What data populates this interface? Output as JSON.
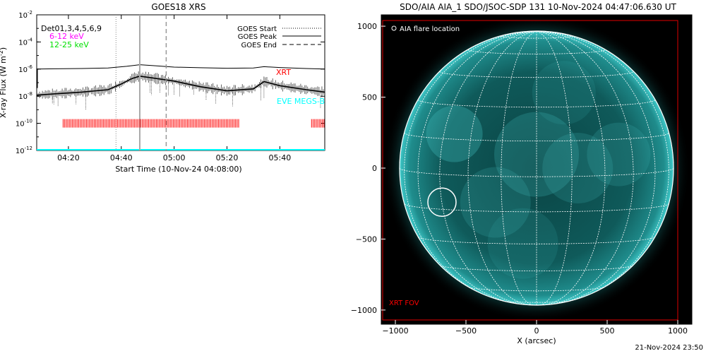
{
  "footer_date": "21-Nov-2024 23:50",
  "colors": {
    "goes_long": "#000000",
    "goes_6_12": "#ff00ff",
    "goes_12_25": "#00ff00",
    "xrt": "#ff0000",
    "eve": "#00ffff",
    "aia_disk": "#0e5050",
    "grid": "#ffffff",
    "fov": "#e00000"
  },
  "chart_data": [
    {
      "type": "line",
      "title": "GOES18 XRS",
      "xlabel": "Start Time (10-Nov-24 04:08:00)",
      "ylabel": "X-ray Flux (W m",
      "ylabel_sup": "-2",
      "ylabel_close": ")",
      "y_scale": "log",
      "ylim": [
        1e-12,
        0.01
      ],
      "xlim": [
        "04:08",
        "05:57"
      ],
      "y_ticks": [
        {
          "base": "10",
          "exp": "-12",
          "value": 1e-12
        },
        {
          "base": "10",
          "exp": "-10",
          "value": 1e-10
        },
        {
          "base": "10",
          "exp": "-8",
          "value": 1e-08
        },
        {
          "base": "10",
          "exp": "-6",
          "value": 1e-06
        },
        {
          "base": "10",
          "exp": "-4",
          "value": 0.0001
        },
        {
          "base": "10",
          "exp": "-2",
          "value": 0.01
        }
      ],
      "x_ticks": [
        "04:20",
        "04:40",
        "05:00",
        "05:20",
        "05:40"
      ],
      "x_tick_minutes": [
        20,
        40,
        60,
        80,
        100
      ],
      "legend_text": {
        "detector": "Det01,3,4,5,6,9",
        "low": "6-12 keV",
        "high": "12-25 keV"
      },
      "markers_legend": [
        "GOES Start",
        "GOES Peak",
        "GOES End"
      ],
      "markers": {
        "start": "04:38",
        "peak": "04:47",
        "end": "04:57"
      },
      "labels": {
        "xrt": "XRT",
        "eve": "EVE MEGS-B"
      },
      "series": [
        {
          "x": [
            "04:08",
            "04:15",
            "04:25",
            "04:35",
            "04:42",
            "04:47",
            "04:52",
            "05:00",
            "05:10",
            "05:20",
            "05:30",
            "05:34",
            "05:40",
            "05:50",
            "05:57"
          ],
          "values": [
            1e-06,
            1.05e-06,
            1.1e-06,
            1.2e-06,
            1.6e-06,
            2.1e-06,
            1.8e-06,
            1.4e-06,
            1.25e-06,
            1.15e-06,
            1.2e-06,
            1.5e-06,
            1.3e-06,
            1.1e-06,
            1e-06
          ]
        },
        {
          "x": [
            "04:08",
            "04:15",
            "04:25",
            "04:35",
            "04:40",
            "04:44",
            "04:47",
            "04:52",
            "05:00",
            "05:10",
            "05:20",
            "05:30",
            "05:34",
            "05:40",
            "05:50",
            "05:57"
          ],
          "values": [
            1.2e-08,
            1.5e-08,
            2e-08,
            3e-08,
            8e-08,
            2e-07,
            3e-07,
            2.2e-07,
            1.3e-07,
            5e-08,
            2.5e-08,
            3.5e-08,
            1.2e-07,
            6e-08,
            3e-08,
            2e-08
          ]
        }
      ],
      "xrt_intervals": [
        [
          "04:18",
          "05:25"
        ],
        [
          "05:52",
          "05:57"
        ]
      ],
      "eve_level": 1e-12
    },
    {
      "type": "scatter",
      "title": "SDO/AIA AIA_1 SDO/JSOC-SDP 131 10-Nov-2024 04:47:06.630 UT",
      "xlabel": "X (arcsec)",
      "ylabel": "",
      "xlim": [
        -1100,
        1100
      ],
      "ylim": [
        -1100,
        1080
      ],
      "x_ticks": [
        "-1000",
        "-500",
        "0",
        "500",
        "1000"
      ],
      "x_tick_values": [
        -1000,
        -500,
        0,
        500,
        1000
      ],
      "y_ticks": [
        "1000",
        "500",
        "0",
        "-500",
        "-1000"
      ],
      "y_tick_values": [
        1000,
        500,
        0,
        -500,
        -1000
      ],
      "solar_radius": 970,
      "legend": "AIA flare location",
      "flare_location": {
        "x": -670,
        "y": -240,
        "radius": 100
      },
      "fov_label": "XRT FOV",
      "fov": {
        "x0": -1100,
        "x1": 1000,
        "y0": -1070,
        "y1": 1040
      }
    }
  ]
}
